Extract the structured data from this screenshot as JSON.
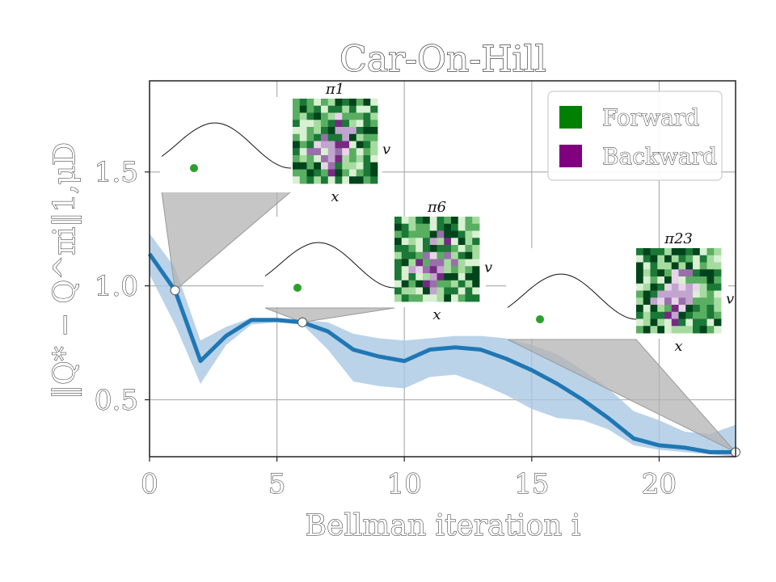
{
  "chart_data": {
    "type": "line",
    "title": "Car-On-Hill",
    "xlabel": "Bellman iteration i",
    "ylabel": "‖Q* − Q^πi‖1,μD",
    "xlim": [
      0,
      23
    ],
    "ylim": [
      0.25,
      1.9
    ],
    "xticks": [
      0,
      5,
      10,
      15,
      20
    ],
    "xtick_labels": [
      "0",
      "5",
      "10",
      "15",
      "20"
    ],
    "yticks": [
      0.5,
      1.0,
      1.5
    ],
    "ytick_labels": [
      "0.5",
      "1.0",
      "1.5"
    ],
    "grid": true,
    "legend_position": "top-right",
    "colors": {
      "line": "#1f77b4",
      "band": "#a9c8e4",
      "forward": "#008000",
      "backward": "#800080",
      "callout": "#b3b3b3"
    },
    "legend": [
      {
        "label": "Forward",
        "color": "#008000"
      },
      {
        "label": "Backward",
        "color": "#800080"
      }
    ],
    "x": [
      0,
      1,
      2,
      3,
      4,
      5,
      6,
      7,
      8,
      9,
      10,
      11,
      12,
      13,
      14,
      15,
      16,
      17,
      18,
      19,
      20,
      21,
      22,
      23
    ],
    "series": [
      {
        "values": [
          1.14,
          0.98,
          0.67,
          0.78,
          0.85,
          0.85,
          0.84,
          0.8,
          0.72,
          0.69,
          0.67,
          0.72,
          0.73,
          0.72,
          0.68,
          0.63,
          0.57,
          0.5,
          0.42,
          0.33,
          0.3,
          0.29,
          0.27,
          0.27
        ],
        "lower": [
          1.05,
          0.83,
          0.57,
          0.74,
          0.83,
          0.84,
          0.83,
          0.72,
          0.58,
          0.56,
          0.55,
          0.6,
          0.61,
          0.57,
          0.52,
          0.46,
          0.42,
          0.41,
          0.37,
          0.3,
          0.28,
          0.27,
          0.26,
          0.25
        ],
        "upper": [
          1.23,
          1.08,
          0.76,
          0.82,
          0.86,
          0.86,
          0.85,
          0.84,
          0.79,
          0.77,
          0.76,
          0.77,
          0.78,
          0.78,
          0.77,
          0.74,
          0.7,
          0.63,
          0.55,
          0.45,
          0.41,
          0.36,
          0.35,
          0.39
        ]
      }
    ],
    "highlight_points": [
      {
        "x": 1,
        "y": 0.98
      },
      {
        "x": 6,
        "y": 0.84
      },
      {
        "x": 23,
        "y": 0.27
      }
    ],
    "insets": [
      {
        "label": "π1",
        "state_x": "x",
        "state_v": "v",
        "point_x": 1,
        "point_y": 0.98
      },
      {
        "label": "π6",
        "state_x": "x",
        "state_v": "v",
        "point_x": 6,
        "point_y": 0.84
      },
      {
        "label": "π23",
        "state_x": "x",
        "state_v": "v",
        "point_x": 23,
        "point_y": 0.27
      }
    ]
  }
}
